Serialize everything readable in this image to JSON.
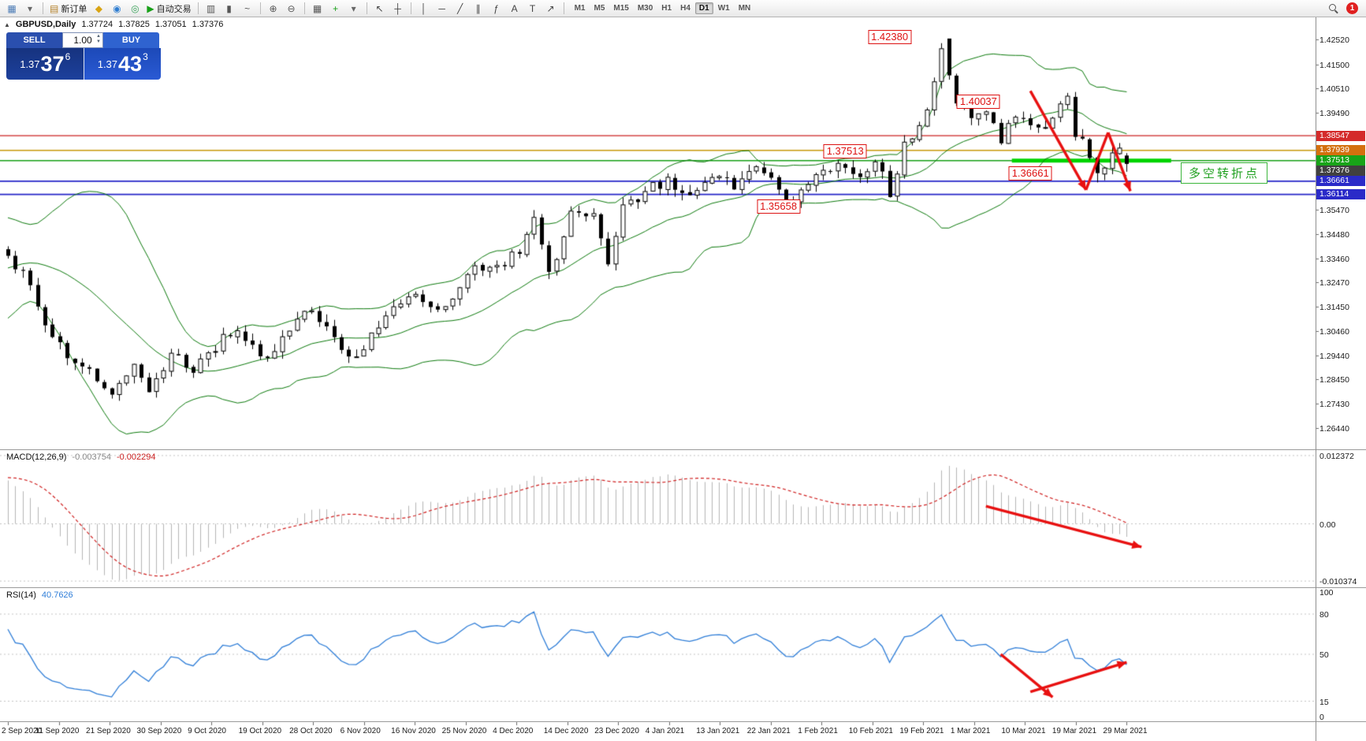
{
  "toolbar": {
    "items": [
      {
        "name": "new-chart-button",
        "glyph": "▦",
        "glyph_color": "#4a7ab5"
      },
      {
        "name": "new-chart-dropdown",
        "glyph": "▾",
        "glyph_color": "#666"
      },
      {
        "sep": true
      },
      {
        "name": "new-order-button",
        "glyph": "▤",
        "glyph_color": "#b5812a",
        "text": "新订单"
      },
      {
        "name": "metaeditor-button",
        "glyph": "◆",
        "glyph_color": "#d9a413"
      },
      {
        "name": "market-watch-button",
        "glyph": "◉",
        "glyph_color": "#2e7dd1"
      },
      {
        "name": "navigator-button",
        "glyph": "◎",
        "glyph_color": "#3aa35a"
      },
      {
        "name": "autotrading-button",
        "glyph": "▶",
        "glyph_color": "#18a018",
        "text": "自动交易"
      },
      {
        "sep": true
      },
      {
        "name": "bar-chart-button",
        "glyph": "▥",
        "glyph_color": "#555"
      },
      {
        "name": "candlestick-chart-button",
        "glyph": "▮",
        "glyph_color": "#555"
      },
      {
        "name": "line-chart-button",
        "glyph": "~",
        "glyph_color": "#555"
      },
      {
        "sep": true
      },
      {
        "name": "zoom-in-button",
        "glyph": "⊕",
        "glyph_color": "#555"
      },
      {
        "name": "zoom-out-button",
        "glyph": "⊖",
        "glyph_color": "#555"
      },
      {
        "sep": true
      },
      {
        "name": "tile-windows-button",
        "glyph": "▦",
        "glyph_color": "#555"
      },
      {
        "name": "indicators-button",
        "glyph": "+",
        "glyph_color": "#18a018"
      },
      {
        "name": "indicators-dropdown",
        "glyph": "▾",
        "glyph_color": "#666"
      },
      {
        "sep": true
      },
      {
        "name": "cursor-button",
        "glyph": "↖",
        "glyph_color": "#444"
      },
      {
        "name": "crosshair-button",
        "glyph": "┼",
        "glyph_color": "#444"
      },
      {
        "sep": true
      },
      {
        "name": "vertical-line-button",
        "glyph": "│",
        "glyph_color": "#444"
      },
      {
        "name": "horizontal-line-button",
        "glyph": "─",
        "glyph_color": "#444"
      },
      {
        "name": "trendline-button",
        "glyph": "╱",
        "glyph_color": "#444"
      },
      {
        "name": "channel-button",
        "glyph": "∥",
        "glyph_color": "#444"
      },
      {
        "name": "fibonacci-button",
        "glyph": "ƒ",
        "glyph_color": "#444"
      },
      {
        "name": "text-button",
        "glyph": "A",
        "glyph_color": "#444"
      },
      {
        "name": "label-button",
        "glyph": "T",
        "glyph_color": "#444"
      },
      {
        "name": "arrows-tool-button",
        "glyph": "↗",
        "glyph_color": "#444"
      },
      {
        "sep": true
      }
    ],
    "timeframes": [
      "M1",
      "M5",
      "M15",
      "M30",
      "H1",
      "H4",
      "D1",
      "W1",
      "MN"
    ],
    "active_timeframe": "D1",
    "notification_count": "1"
  },
  "chart": {
    "header": {
      "collapse_icon": "▲",
      "symbol": "GBPUSD,Daily",
      "open": "1.37724",
      "high": "1.37825",
      "low": "1.37051",
      "close": "1.37376"
    },
    "trade_widget": {
      "sell_label": "SELL",
      "buy_label": "BUY",
      "volume": "1.00",
      "sell_price_prefix": "1.37",
      "sell_price_big": "37",
      "sell_price_sup": "6",
      "buy_price_prefix": "1.37",
      "buy_price_big": "43",
      "buy_price_sup": "3"
    },
    "annotation": {
      "text": "多空转折点",
      "color": "#21a121"
    },
    "callouts": [
      {
        "text": "1.42380",
        "index": 119,
        "price": 1.4262
      },
      {
        "text": "1.40037",
        "index": 131,
        "price": 1.3996
      },
      {
        "text": "1.37513",
        "index": 113,
        "price": 1.3791
      },
      {
        "text": "1.36661",
        "index": 138,
        "price": 1.3699
      },
      {
        "text": "1.35658",
        "index": 104,
        "price": 1.356
      }
    ],
    "hlines": [
      {
        "price": 1.38547,
        "color": "#cc2222",
        "width": 1.4
      },
      {
        "price": 1.37939,
        "color": "#c89a0a",
        "width": 1.6
      },
      {
        "price": 1.37513,
        "color": "#17a017",
        "width": 1.4
      },
      {
        "price": 1.36661,
        "color": "#2626c8",
        "width": 1.8
      },
      {
        "price": 1.36114,
        "color": "#2626c8",
        "width": 1.8
      }
    ],
    "thick_line": {
      "price": 1.3751,
      "from": 135.5,
      "to": 157,
      "color": "#00d400",
      "width": 5
    },
    "badges": [
      {
        "text": "1.38547",
        "price": 1.38547,
        "color": "#d42a2a"
      },
      {
        "text": "1.37939",
        "price": 1.37939,
        "color": "#d4700e"
      },
      {
        "text": "1.37513",
        "price": 1.37513,
        "color": "#18a418"
      },
      {
        "text": "1.37376",
        "price": 1.37376,
        "color": "#404040"
      },
      {
        "text": "1.36661",
        "price": 1.36661,
        "color": "#2a2ac8"
      },
      {
        "text": "1.36114",
        "price": 1.36114,
        "color": "#2a2ac8"
      }
    ],
    "y_axis": [
      "1.42520",
      "1.41500",
      "1.40510",
      "1.39490",
      "1.35470",
      "1.34480",
      "1.33460",
      "1.32470",
      "1.31450",
      "1.30460",
      "1.29440",
      "1.28450",
      "1.27430",
      "1.26440"
    ],
    "x_axis": [
      "2 Sep 2020",
      "11 Sep 2020",
      "21 Sep 2020",
      "30 Sep 2020",
      "9 Oct 2020",
      "19 Oct 2020",
      "28 Oct 2020",
      "6 Nov 2020",
      "16 Nov 2020",
      "25 Nov 2020",
      "4 Dec 2020",
      "14 Dec 2020",
      "23 Dec 2020",
      "4 Jan 2021",
      "13 Jan 2021",
      "22 Jan 2021",
      "1 Feb 2021",
      "10 Feb 2021",
      "19 Feb 2021",
      "1 Mar 2021",
      "10 Mar 2021",
      "19 Mar 2021",
      "29 Mar 2021"
    ]
  },
  "macd": {
    "title": "MACD(12,26,9)",
    "value1": "-0.003754",
    "value2": "-0.002294",
    "axis": [
      "0.012372",
      "0.00",
      "-0.010374"
    ]
  },
  "rsi": {
    "title": "RSI(14)",
    "value": "40.7626",
    "axis": [
      "100",
      "80",
      "50",
      "15",
      "0"
    ],
    "levels": [
      80,
      50,
      15
    ]
  },
  "arrow_color": "#e81010",
  "arrows": [
    {
      "panel": "main",
      "points": [
        [
          138,
          1.404
        ],
        [
          145.5,
          1.363
        ]
      ],
      "head": true
    },
    {
      "panel": "main",
      "points": [
        [
          145.5,
          1.363
        ],
        [
          148.5,
          1.3868
        ]
      ],
      "head": false
    },
    {
      "panel": "main",
      "points": [
        [
          148.5,
          1.3868
        ],
        [
          151.5,
          1.3625
        ]
      ],
      "head": true
    },
    {
      "panel": "macd",
      "points": [
        [
          132,
          0.0032
        ],
        [
          153,
          -0.0042
        ]
      ],
      "head": true
    },
    {
      "panel": "rsi",
      "points": [
        [
          134,
          50
        ],
        [
          141,
          18
        ]
      ],
      "head": true
    },
    {
      "panel": "rsi",
      "points": [
        [
          138,
          22
        ],
        [
          151,
          44
        ]
      ],
      "head": true
    }
  ],
  "chart_data": {
    "type": "candlestick",
    "symbol": "GBPUSD",
    "timeframe": "Daily",
    "visible_bars": 152,
    "price_axis_range": [
      1.2555,
      1.4345
    ],
    "last_candle": {
      "o": 1.37724,
      "h": 1.37825,
      "l": 1.37051,
      "c": 1.37376
    },
    "anchors": [
      [
        -26,
        1.298
      ],
      [
        -8,
        1.335
      ],
      [
        -3,
        1.347
      ],
      [
        0,
        1.335
      ],
      [
        3,
        1.323
      ],
      [
        6,
        1.3
      ],
      [
        10,
        1.29
      ],
      [
        14,
        1.2765
      ],
      [
        17,
        1.29
      ],
      [
        19,
        1.277
      ],
      [
        22,
        1.294
      ],
      [
        25,
        1.289
      ],
      [
        28,
        1.2985
      ],
      [
        31,
        1.3055
      ],
      [
        34,
        1.2935
      ],
      [
        37,
        1.3
      ],
      [
        40,
        1.3135
      ],
      [
        43,
        1.306
      ],
      [
        46,
        1.2925
      ],
      [
        49,
        1.302
      ],
      [
        52,
        1.313
      ],
      [
        55,
        1.318
      ],
      [
        58,
        1.3115
      ],
      [
        61,
        1.3245
      ],
      [
        63,
        1.332
      ],
      [
        66,
        1.3295
      ],
      [
        69,
        1.339
      ],
      [
        71,
        1.354
      ],
      [
        73,
        1.327
      ],
      [
        76,
        1.352
      ],
      [
        79,
        1.355
      ],
      [
        81,
        1.331
      ],
      [
        83,
        1.356
      ],
      [
        86,
        1.362
      ],
      [
        89,
        1.367
      ],
      [
        92,
        1.359
      ],
      [
        95,
        1.369
      ],
      [
        98,
        1.3655
      ],
      [
        101,
        1.373
      ],
      [
        104,
        1.365
      ],
      [
        106,
        1.356
      ],
      [
        109,
        1.37
      ],
      [
        112,
        1.3725
      ],
      [
        115,
        1.3685
      ],
      [
        117,
        1.3745
      ],
      [
        119,
        1.362
      ],
      [
        121,
        1.381
      ],
      [
        124,
        1.3955
      ],
      [
        126,
        1.4238
      ],
      [
        128,
        1.401
      ],
      [
        130,
        1.393
      ],
      [
        132,
        1.3955
      ],
      [
        134,
        1.3825
      ],
      [
        136,
        1.3935
      ],
      [
        138,
        1.3905
      ],
      [
        140,
        1.388
      ],
      [
        142,
        1.3985
      ],
      [
        143,
        1.4
      ],
      [
        144,
        1.387
      ],
      [
        145,
        1.384
      ],
      [
        146,
        1.3755
      ],
      [
        147,
        1.3675
      ],
      [
        148,
        1.3705
      ],
      [
        149,
        1.3775
      ],
      [
        150,
        1.38
      ],
      [
        151,
        1.37376
      ]
    ],
    "indicators": {
      "bollinger": {
        "period": 20,
        "deviation": 2
      },
      "macd": {
        "fast": 12,
        "slow": 26,
        "signal": 9,
        "current": [
          -0.003754,
          -0.002294
        ]
      },
      "rsi": {
        "period": 14,
        "current": 40.7626
      }
    },
    "key_levels": [
      1.4238,
      1.40037,
      1.38547,
      1.37939,
      1.37513,
      1.36661,
      1.36114,
      1.35658
    ]
  }
}
